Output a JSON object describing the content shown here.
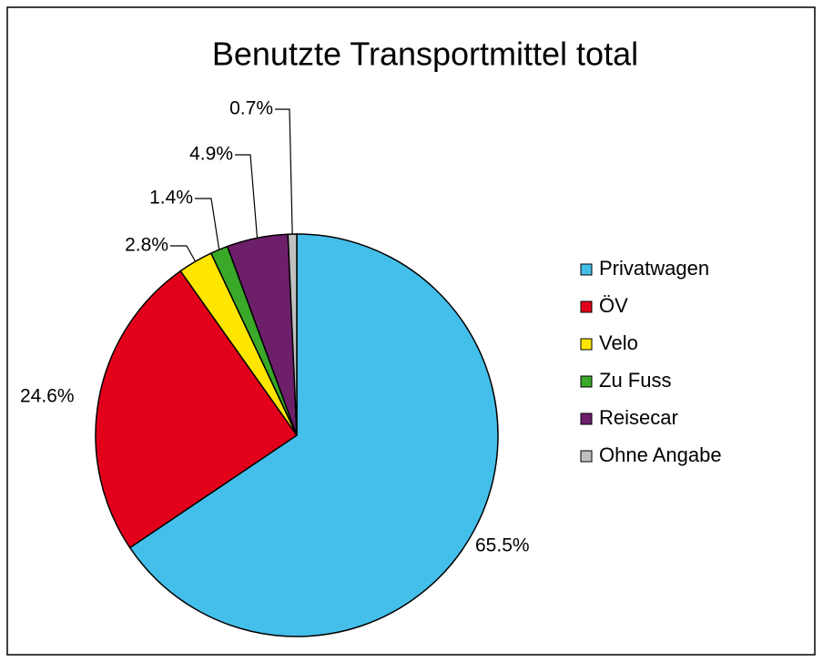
{
  "chart_data": {
    "type": "pie",
    "title": "Benutzte Transportmittel total",
    "categories": [
      "Privatwagen",
      "ÖV",
      "Velo",
      "Zu Fuss",
      "Reisecar",
      "Ohne Angabe"
    ],
    "values": [
      65.5,
      24.6,
      2.8,
      1.4,
      4.9,
      0.7
    ],
    "value_labels": [
      "65.5%",
      "24.6%",
      "2.8%",
      "1.4%",
      "4.9%",
      "0.7%"
    ],
    "colors": [
      "#44bfea",
      "#e3001b",
      "#ffe600",
      "#3aa828",
      "#6d1f6a",
      "#c0c0c0"
    ],
    "legend": "right"
  }
}
